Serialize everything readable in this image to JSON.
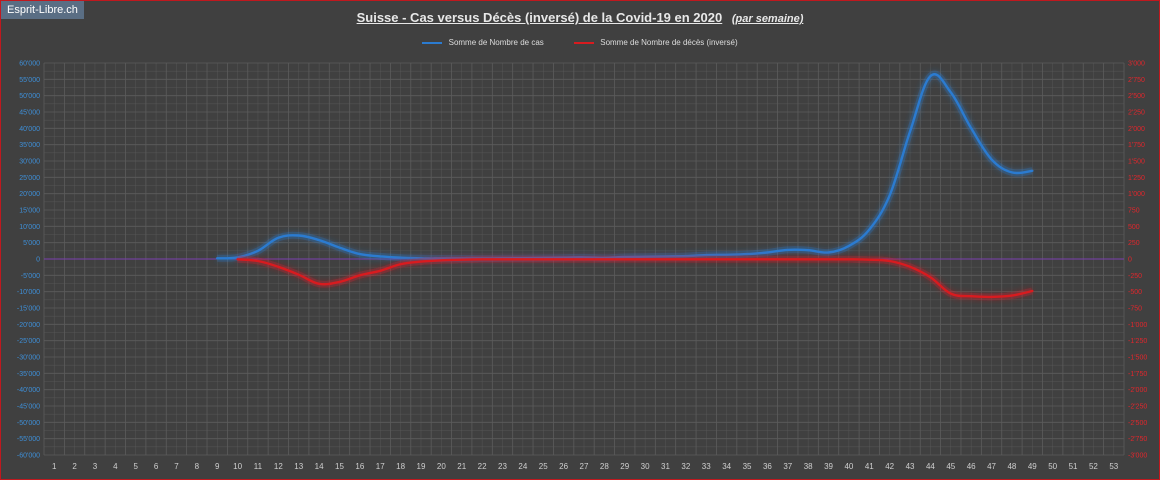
{
  "watermark": "Esprit-Libre.ch",
  "title": {
    "main": "Suisse - Cas versus Décès (inversé) de la Covid-19 en 2020",
    "sub": "(par semaine)"
  },
  "colors": {
    "cases": "#2b7bd0",
    "deaths": "#d81b1f",
    "zero_line": "#7b3fb0",
    "grid": "#5c5c5c"
  },
  "chart_data": {
    "type": "line",
    "title": "Suisse - Cas versus Décès (inversé) de la Covid-19 en 2020 (par semaine)",
    "x": [
      9,
      10,
      11,
      12,
      13,
      14,
      15,
      16,
      17,
      18,
      19,
      20,
      21,
      22,
      23,
      24,
      25,
      26,
      27,
      28,
      29,
      30,
      31,
      32,
      33,
      34,
      35,
      36,
      37,
      38,
      39,
      40,
      41,
      42,
      43,
      44,
      45,
      46,
      47,
      48,
      49
    ],
    "x_ticks": [
      1,
      2,
      3,
      4,
      5,
      6,
      7,
      8,
      9,
      10,
      11,
      12,
      13,
      14,
      15,
      16,
      17,
      18,
      19,
      20,
      21,
      22,
      23,
      24,
      25,
      26,
      27,
      28,
      29,
      30,
      31,
      32,
      33,
      34,
      35,
      36,
      37,
      38,
      39,
      40,
      41,
      42,
      43,
      44,
      45,
      46,
      47,
      48,
      49,
      50,
      51,
      52,
      53
    ],
    "xlim": [
      1,
      53
    ],
    "ylim_left": [
      -60000,
      60000
    ],
    "ylim_right": [
      -3000,
      3000
    ],
    "y_ticks_left": [
      "60'000",
      "55'000",
      "50'000",
      "45'000",
      "40'000",
      "35'000",
      "30'000",
      "25'000",
      "20'000",
      "15'000",
      "10'000",
      "5'000",
      "0",
      "-5'000",
      "-10'000",
      "-15'000",
      "-20'000",
      "-25'000",
      "-30'000",
      "-35'000",
      "-40'000",
      "-45'000",
      "-50'000",
      "-55'000",
      "-60'000"
    ],
    "y_ticks_right": [
      "3'000",
      "2'750",
      "2'500",
      "2'250",
      "2'000",
      "1'750",
      "1'500",
      "1'250",
      "1'000",
      "750",
      "500",
      "250",
      "0",
      "-250",
      "-500",
      "-750",
      "-1'000",
      "-1'250",
      "-1'500",
      "-1'750",
      "-2'000",
      "-2'250",
      "-2'500",
      "-2'750",
      "-3'000"
    ],
    "grid": true,
    "legend_position": "top",
    "series": [
      {
        "name": "Somme de Nombre de cas",
        "axis": "left",
        "values": [
          200,
          500,
          2500,
          6500,
          7200,
          5800,
          3500,
          1500,
          800,
          400,
          200,
          150,
          150,
          150,
          200,
          250,
          300,
          400,
          500,
          350,
          600,
          700,
          800,
          900,
          1200,
          1300,
          1500,
          2000,
          2800,
          2700,
          2000,
          4000,
          9000,
          19500,
          39000,
          56000,
          51000,
          40000,
          30500,
          26500,
          27000
        ]
      },
      {
        "name": "Somme de Nombre de décès (inversé)",
        "axis": "right",
        "values": [
          null,
          -5,
          -30,
          -120,
          -240,
          -380,
          -350,
          -250,
          -180,
          -80,
          -40,
          -20,
          -10,
          -5,
          -5,
          -5,
          -5,
          -5,
          -5,
          -5,
          -5,
          -5,
          -5,
          -5,
          -5,
          -5,
          -5,
          -5,
          -5,
          -5,
          -5,
          -5,
          -10,
          -30,
          -120,
          -280,
          -530,
          -570,
          -580,
          -560,
          -490
        ]
      }
    ]
  }
}
